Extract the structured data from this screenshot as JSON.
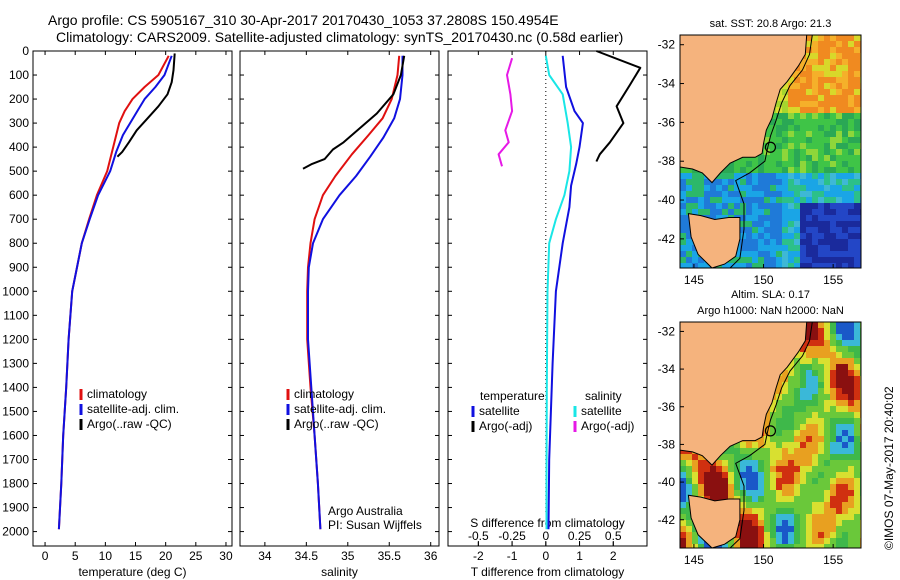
{
  "header": {
    "line1": "Argo profile: CS 5905167_310 30-Apr-2017 20170430_1053 37.2808S 150.4954E",
    "line2": "Climatology: CARS2009. Satellite-adjusted climatology: synTS_20170430.nc (0.58d earlier)"
  },
  "colors": {
    "climatology": "#e01010",
    "satellite": "#1010e0",
    "argo": "#000000",
    "salinity_satellite": "#19e6e6",
    "salinity_argo": "#e619e6",
    "land": "#f5b37d"
  },
  "depth_axis": {
    "ticks": [
      0,
      100,
      200,
      300,
      400,
      500,
      600,
      700,
      800,
      900,
      1000,
      1100,
      1200,
      1300,
      1400,
      1500,
      1600,
      1700,
      1800,
      1900,
      2000
    ]
  },
  "chart_data": [
    {
      "type": "line",
      "id": "temperature",
      "xlabel": "temperature (deg C)",
      "xlim": [
        -2,
        31
      ],
      "xticks": [
        0,
        5,
        10,
        15,
        20,
        25,
        30
      ],
      "ylim": [
        0,
        2060
      ],
      "legend": {
        "position": "bottom-left",
        "entries": [
          "climatology",
          "satellite-adj. clim.",
          "Argo(..raw -QC)"
        ]
      },
      "series": [
        {
          "name": "climatology",
          "color": "#e01010",
          "points": [
            [
              20.5,
              20
            ],
            [
              18.8,
              100
            ],
            [
              16.5,
              150
            ],
            [
              14.5,
              200
            ],
            [
              13.2,
              250
            ],
            [
              12.3,
              300
            ],
            [
              11.3,
              400
            ],
            [
              10.3,
              500
            ],
            [
              8.6,
              600
            ],
            [
              7.3,
              700
            ],
            [
              6.1,
              800
            ],
            [
              5.3,
              900
            ],
            [
              4.5,
              1000
            ],
            [
              3.9,
              1200
            ],
            [
              3.5,
              1400
            ],
            [
              3.0,
              1600
            ],
            [
              2.7,
              1800
            ],
            [
              2.3,
              1990
            ]
          ]
        },
        {
          "name": "satellite-adj. clim.",
          "color": "#1010e0",
          "points": [
            [
              21.0,
              20
            ],
            [
              19.8,
              100
            ],
            [
              18.3,
              150
            ],
            [
              16.5,
              200
            ],
            [
              15.3,
              250
            ],
            [
              14.1,
              300
            ],
            [
              12.9,
              350
            ],
            [
              11.8,
              420
            ],
            [
              10.8,
              500
            ],
            [
              8.8,
              600
            ],
            [
              7.4,
              700
            ],
            [
              6.1,
              800
            ],
            [
              5.3,
              900
            ],
            [
              4.5,
              1000
            ],
            [
              3.9,
              1200
            ],
            [
              3.5,
              1400
            ],
            [
              3.0,
              1600
            ],
            [
              2.7,
              1800
            ],
            [
              2.3,
              1990
            ]
          ]
        },
        {
          "name": "Argo(..raw -QC)",
          "color": "#000000",
          "points": [
            [
              21.5,
              10
            ],
            [
              21.3,
              80
            ],
            [
              21.0,
              130
            ],
            [
              20.3,
              180
            ],
            [
              18.8,
              230
            ],
            [
              17.0,
              280
            ],
            [
              15.2,
              330
            ],
            [
              13.9,
              380
            ],
            [
              12.8,
              420
            ],
            [
              12.0,
              440
            ]
          ]
        }
      ]
    },
    {
      "type": "line",
      "id": "salinity",
      "xlabel": "salinity",
      "xlim": [
        33.7,
        36.1
      ],
      "xticks": [
        34,
        34.5,
        35,
        35.5,
        36
      ],
      "xticklabels": [
        "34",
        "34.5",
        "35",
        "35.5",
        "36"
      ],
      "ylim": [
        0,
        2060
      ],
      "legend": {
        "position": "bottom-left",
        "entries": [
          "climatology",
          "satellite-adj. clim.",
          "Argo(..raw -QC)"
        ]
      },
      "annotations": [
        "Argo Australia",
        "PI: Susan Wijffels"
      ],
      "series": [
        {
          "name": "climatology",
          "color": "#e01010",
          "points": [
            [
              35.62,
              20
            ],
            [
              35.6,
              100
            ],
            [
              35.53,
              200
            ],
            [
              35.42,
              280
            ],
            [
              35.25,
              350
            ],
            [
              35.05,
              430
            ],
            [
              34.85,
              520
            ],
            [
              34.7,
              600
            ],
            [
              34.6,
              700
            ],
            [
              34.55,
              800
            ],
            [
              34.52,
              900
            ],
            [
              34.51,
              1000
            ],
            [
              34.51,
              1200
            ],
            [
              34.55,
              1400
            ],
            [
              34.6,
              1600
            ],
            [
              34.64,
              1800
            ],
            [
              34.67,
              1990
            ]
          ]
        },
        {
          "name": "satellite-adj. clim.",
          "color": "#1010e0",
          "points": [
            [
              35.66,
              20
            ],
            [
              35.66,
              100
            ],
            [
              35.63,
              200
            ],
            [
              35.56,
              280
            ],
            [
              35.43,
              360
            ],
            [
              35.27,
              440
            ],
            [
              35.1,
              520
            ],
            [
              34.9,
              600
            ],
            [
              34.7,
              700
            ],
            [
              34.58,
              800
            ],
            [
              34.53,
              900
            ],
            [
              34.52,
              1000
            ],
            [
              34.52,
              1200
            ],
            [
              34.56,
              1400
            ],
            [
              34.6,
              1600
            ],
            [
              34.64,
              1800
            ],
            [
              34.67,
              1990
            ]
          ]
        },
        {
          "name": "Argo(..raw -QC)",
          "color": "#000000",
          "points": [
            [
              35.68,
              20
            ],
            [
              35.64,
              100
            ],
            [
              35.55,
              180
            ],
            [
              35.35,
              260
            ],
            [
              35.15,
              320
            ],
            [
              34.95,
              380
            ],
            [
              34.82,
              410
            ],
            [
              34.72,
              450
            ],
            [
              34.57,
              470
            ],
            [
              34.46,
              490
            ]
          ]
        }
      ]
    },
    {
      "type": "line",
      "id": "difference",
      "xlabel": "T difference from climatology",
      "xlabel_top": "S difference from climatology",
      "xlim": [
        -2.9,
        3.0
      ],
      "xticks": [
        -2,
        -1,
        0,
        1,
        2
      ],
      "s_ticks": [
        -0.5,
        -0.25,
        0,
        0.25,
        0.5
      ],
      "s_ticklabels": [
        "-0.5",
        "-0.25",
        "0",
        "0.25",
        "0.5"
      ],
      "ylim": [
        0,
        2060
      ],
      "legend": {
        "position": "bottom",
        "temperature_title": "temperature",
        "salinity_title": "salinity",
        "entries": [
          "satellite",
          "Argo(-adj)",
          "satellite",
          "Argo(-adj)"
        ]
      },
      "series": [
        {
          "name": "T satellite",
          "color": "#1010e0",
          "points": [
            [
              0.5,
              20
            ],
            [
              0.6,
              150
            ],
            [
              0.85,
              250
            ],
            [
              1.1,
              300
            ],
            [
              1.0,
              400
            ],
            [
              0.9,
              470
            ],
            [
              0.75,
              560
            ],
            [
              0.7,
              650
            ],
            [
              0.5,
              800
            ],
            [
              0.3,
              1000
            ],
            [
              0.2,
              1300
            ],
            [
              0.1,
              1700
            ],
            [
              0.08,
              1990
            ]
          ]
        },
        {
          "name": "T Argo(-adj)",
          "color": "#000000",
          "points": [
            [
              1.5,
              0
            ],
            [
              2.8,
              70
            ],
            [
              2.5,
              140
            ],
            [
              2.1,
              230
            ],
            [
              2.3,
              300
            ],
            [
              1.9,
              380
            ],
            [
              1.6,
              430
            ],
            [
              1.5,
              460
            ]
          ]
        },
        {
          "name": "S satellite",
          "color": "#19e6e6",
          "points": [
            [
              0.0,
              20
            ],
            [
              0.1,
              100
            ],
            [
              0.5,
              180
            ],
            [
              0.65,
              300
            ],
            [
              0.75,
              400
            ],
            [
              0.7,
              500
            ],
            [
              0.55,
              600
            ],
            [
              0.3,
              700
            ],
            [
              0.1,
              800
            ],
            [
              0.05,
              1000
            ],
            [
              0.03,
              1400
            ],
            [
              0.02,
              1800
            ],
            [
              0.02,
              1990
            ]
          ]
        },
        {
          "name": "S Argo(-adj)",
          "color": "#e619e6",
          "points": [
            [
              -1.0,
              30
            ],
            [
              -1.15,
              100
            ],
            [
              -1.05,
              180
            ],
            [
              -1.0,
              250
            ],
            [
              -1.2,
              330
            ],
            [
              -1.1,
              380
            ],
            [
              -1.4,
              430
            ],
            [
              -1.3,
              480
            ]
          ]
        }
      ]
    },
    {
      "type": "heatmap",
      "id": "sst_map",
      "title": "sat. SST: 20.8  Argo: 21.3",
      "xlim": [
        144,
        157
      ],
      "ylim": [
        -43.5,
        -31.5
      ],
      "xticks": [
        145,
        150,
        155
      ],
      "yticks": [
        -32,
        -34,
        -36,
        -38,
        -40,
        -42
      ],
      "float_position": [
        150.4954,
        -37.2808
      ]
    },
    {
      "type": "heatmap",
      "id": "sla_map",
      "title_line1": "Altim. SLA: 0.17",
      "title_line2": "Argo h1000: NaN h2000: NaN",
      "xlim": [
        144,
        157
      ],
      "ylim": [
        -43.5,
        -31.5
      ],
      "xticks": [
        145,
        150,
        155
      ],
      "yticks": [
        -32,
        -34,
        -36,
        -38,
        -40,
        -42
      ],
      "float_position": [
        150.4954,
        -37.2808
      ]
    }
  ],
  "footer": {
    "credit": "©IMOS 07-May-2017 20:40:02"
  }
}
